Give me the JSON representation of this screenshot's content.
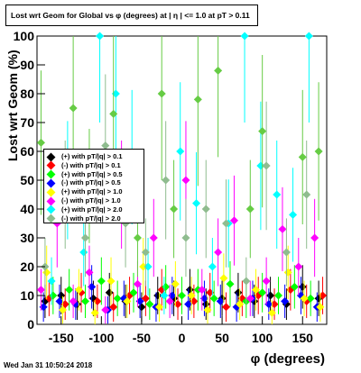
{
  "title": "Lost wrt Geom for Global vs φ (degrees) at | η | <= 1.0 at pT > 0.11",
  "footer": "Wed Jan 31 10:50:24 2018",
  "chart_data": {
    "type": "scatter",
    "xlabel": "φ (degrees)",
    "ylabel": "Lost wrt Geom (%)",
    "xlim": [
      -180,
      180
    ],
    "ylim": [
      0,
      100
    ],
    "xticks": [
      "-150",
      "-100",
      "-50",
      "0",
      "50",
      "100",
      "150"
    ],
    "xtick_values": [
      -150,
      -100,
      -50,
      0,
      50,
      100,
      150
    ],
    "yticks": [
      "0",
      "10",
      "20",
      "30",
      "40",
      "50",
      "60",
      "70",
      "80",
      "90",
      "100"
    ],
    "ytick_values": [
      0,
      10,
      20,
      30,
      40,
      50,
      60,
      70,
      80,
      90,
      100
    ],
    "legend_placement": "center-left",
    "series": [
      {
        "name": "(+) with pT/|q| > 0.1",
        "color": "#000000",
        "x": [
          -170,
          -150,
          -130,
          -110,
          -90,
          -70,
          -50,
          -30,
          -10,
          10,
          30,
          50,
          70,
          90,
          110,
          130,
          150,
          170
        ],
        "y": [
          8,
          10,
          7,
          9,
          11,
          8,
          6,
          10,
          9,
          12,
          7,
          9,
          11,
          8,
          10,
          7,
          13,
          9
        ]
      },
      {
        "name": "(-) with pT/|q| > 0.1",
        "color": "#ff0000",
        "x": [
          -165,
          -145,
          -125,
          -105,
          -85,
          -65,
          -45,
          -25,
          -5,
          15,
          35,
          55,
          75,
          95,
          115,
          135,
          155,
          175
        ],
        "y": [
          9,
          7,
          11,
          8,
          6,
          10,
          9,
          12,
          7,
          8,
          11,
          6,
          9,
          10,
          7,
          12,
          8,
          10
        ]
      },
      {
        "name": "(+) with pT/|q| > 0.5",
        "color": "#00ff00",
        "x": [
          -160,
          -140,
          -120,
          -100,
          -80,
          -60,
          -40,
          -20,
          0,
          20,
          40,
          60,
          80,
          100,
          120,
          140,
          160
        ],
        "y": [
          10,
          12,
          8,
          15,
          9,
          11,
          7,
          13,
          10,
          12,
          9,
          14,
          8,
          11,
          10,
          13,
          9
        ]
      },
      {
        "name": "(-) with pT/|q| > 0.5",
        "color": "#0000ff",
        "x": [
          -172,
          -152,
          -132,
          -112,
          -92,
          -72,
          -52,
          -32,
          -12,
          8,
          28,
          48,
          68,
          88,
          108,
          128,
          148,
          168
        ],
        "y": [
          6,
          8,
          7,
          13,
          5,
          9,
          8,
          6,
          10,
          7,
          9,
          8,
          6,
          9,
          7,
          8,
          10,
          6
        ]
      },
      {
        "name": "(+) with pT/|q| > 1.0",
        "color": "#ffff00",
        "x": [
          -168,
          -148,
          -128,
          -108,
          -88,
          -68,
          -48,
          -28,
          -8,
          12,
          32,
          52,
          72,
          92,
          112,
          132,
          152,
          172
        ],
        "y": [
          18,
          5,
          12,
          4,
          15,
          8,
          20,
          6,
          14,
          10,
          5,
          16,
          7,
          12,
          4,
          18,
          9,
          6
        ]
      },
      {
        "name": "(-) with pT/|q| > 1.0",
        "color": "#ff00ff",
        "x": [
          -175,
          -155,
          -135,
          -115,
          -95,
          -75,
          -55,
          -35,
          -15,
          5,
          25,
          45,
          65,
          85,
          105,
          125,
          145,
          165
        ],
        "y": [
          12,
          35,
          8,
          18,
          5,
          45,
          14,
          30,
          8,
          50,
          12,
          25,
          36,
          9,
          15,
          33,
          20,
          30
        ]
      },
      {
        "name": "(+) with pT/|q| > 2.0",
        "color": "#00ffff",
        "x": [
          -162,
          -142,
          -122,
          -102,
          -82,
          -62,
          -42,
          -22,
          -2,
          18,
          38,
          58,
          78,
          98,
          118,
          138,
          158
        ],
        "y": [
          15,
          50,
          25,
          100,
          80,
          58,
          20,
          10,
          60,
          42,
          20,
          35,
          100,
          55,
          45,
          38,
          100
        ]
      },
      {
        "name": "(-) with pT/|q| > 2.0",
        "color": "#8fbc8f",
        "x": [
          -170,
          -145,
          -120,
          -95,
          -70,
          -45,
          -20,
          5,
          30,
          55,
          80,
          105,
          130,
          155
        ],
        "y": [
          20,
          45,
          30,
          62,
          35,
          25,
          50,
          30,
          40,
          35,
          15,
          55,
          25,
          45
        ]
      },
      {
        "name": "",
        "color": "#66cc44",
        "x": [
          -175,
          -135,
          -115,
          -85,
          -55,
          -25,
          -10,
          20,
          45,
          85,
          100,
          150,
          170
        ],
        "y": [
          63,
          75,
          48,
          73,
          30,
          80,
          40,
          78,
          88,
          40,
          67,
          58,
          60
        ]
      }
    ]
  }
}
